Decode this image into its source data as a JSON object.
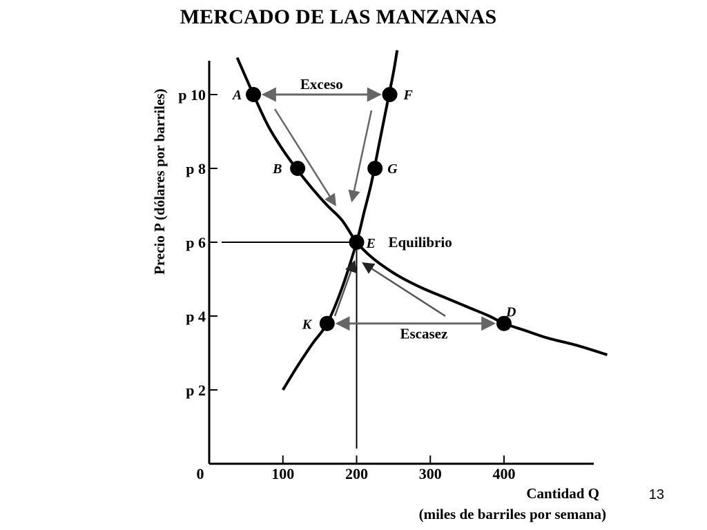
{
  "page": {
    "title": "MERCADO DE LAS MANZANAS",
    "page_number": "13"
  },
  "chart_data": {
    "type": "line",
    "title": "MERCADO DE LAS MANZANAS",
    "ylabel": "Precio P (dólares por barriles)",
    "xlabel": "Cantidad Q",
    "xlabel_sub": "(miles de barriles por semana)",
    "xlim": [
      0,
      540
    ],
    "ylim": [
      0,
      11
    ],
    "x_ticks": [
      {
        "value": 0,
        "label": "0"
      },
      {
        "value": 100,
        "label": "100"
      },
      {
        "value": 200,
        "label": "200"
      },
      {
        "value": 300,
        "label": "300"
      },
      {
        "value": 400,
        "label": "400"
      }
    ],
    "y_ticks": [
      {
        "value": 2,
        "label": "p 2"
      },
      {
        "value": 4,
        "label": "p 4"
      },
      {
        "value": 6,
        "label": "p 6"
      },
      {
        "value": 8,
        "label": "p 8"
      },
      {
        "value": 10,
        "label": "p 10"
      }
    ],
    "series": [
      {
        "kind": "demand",
        "x": [
          38,
          60,
          80,
          100,
          120,
          140,
          160,
          180,
          200,
          220,
          240,
          260,
          290,
          320,
          350,
          380,
          400,
          430,
          460,
          500,
          540
        ],
        "y": [
          11.0,
          10.0,
          9.15,
          8.5,
          7.95,
          7.45,
          7.0,
          6.6,
          6.0,
          5.6,
          5.3,
          5.05,
          4.75,
          4.5,
          4.25,
          4.0,
          3.8,
          3.6,
          3.4,
          3.2,
          2.95
        ]
      },
      {
        "kind": "supply",
        "x": [
          100,
          120,
          140,
          160,
          180,
          200,
          210,
          220,
          230,
          240,
          250,
          255
        ],
        "y": [
          2.0,
          2.65,
          3.25,
          3.8,
          4.75,
          6.0,
          6.8,
          7.6,
          8.6,
          9.6,
          10.6,
          11.2
        ]
      }
    ],
    "points": [
      {
        "label": "A",
        "x": 60,
        "y": 10
      },
      {
        "label": "F",
        "x": 245,
        "y": 10
      },
      {
        "label": "B",
        "x": 120,
        "y": 8
      },
      {
        "label": "G",
        "x": 225,
        "y": 8
      },
      {
        "label": "E",
        "x": 200,
        "y": 6
      },
      {
        "label": "K",
        "x": 160,
        "y": 3.8
      },
      {
        "label": "D",
        "x": 400,
        "y": 3.8
      }
    ],
    "equilibrium": {
      "x": 200,
      "y": 6,
      "label": "Equilibrio"
    },
    "annotations": [
      {
        "text": "Exceso",
        "from_x": 60,
        "to_x": 245,
        "y": 10
      },
      {
        "text": "Escasez",
        "from_x": 160,
        "to_x": 400,
        "y": 3.8
      }
    ],
    "grid": false
  }
}
